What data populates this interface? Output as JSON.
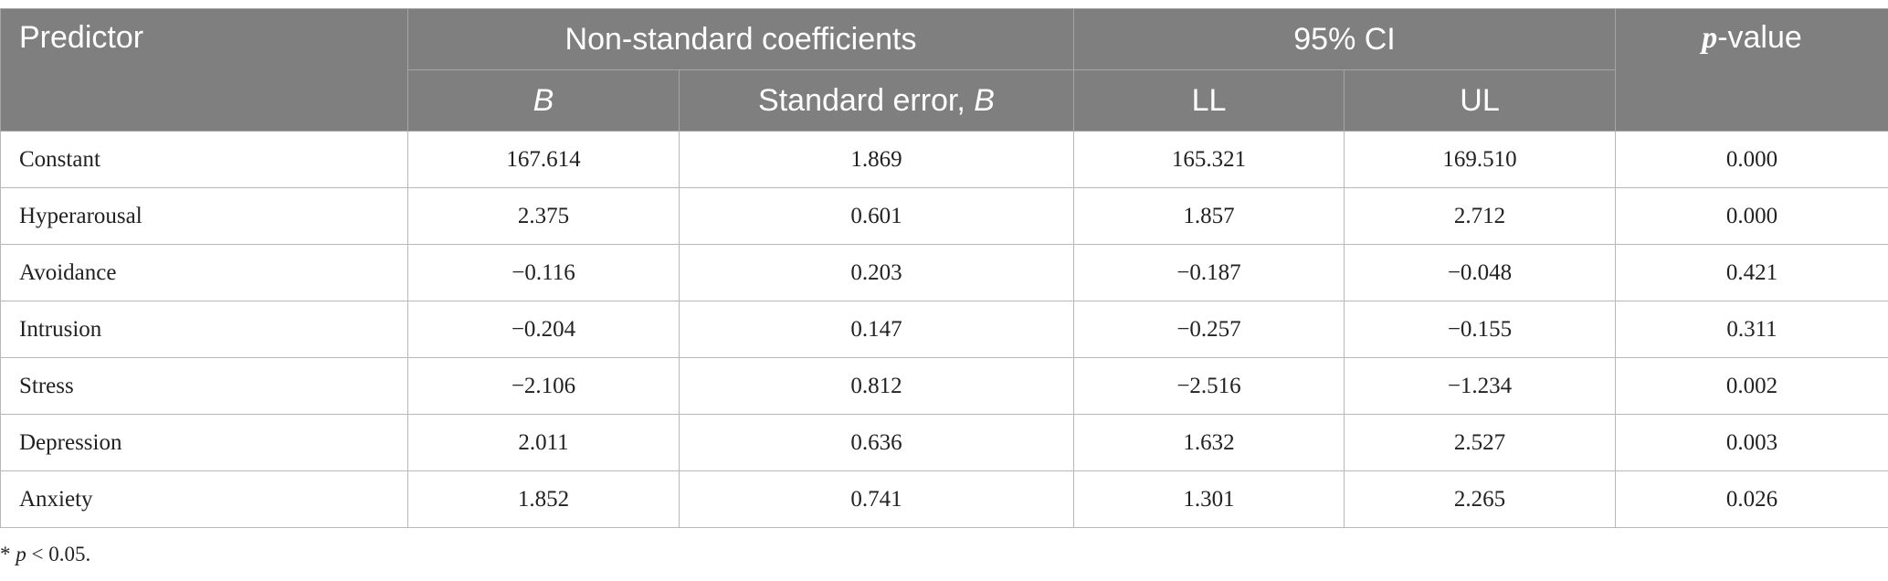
{
  "header": {
    "predictor": "Predictor",
    "group_coefficients": "Non-standard coefficients",
    "group_ci": "95% CI",
    "p_value": {
      "italic": "p",
      "rest": "-value"
    },
    "b": "B",
    "se": {
      "text": "Standard error, ",
      "italic": "B"
    },
    "ll": "LL",
    "ul": "UL"
  },
  "table": {
    "rows": [
      [
        "Constant",
        "167.614",
        "1.869",
        "165.321",
        "169.510",
        "0.000"
      ],
      [
        "Hyperarousal",
        "2.375",
        "0.601",
        "1.857",
        "2.712",
        "0.000"
      ],
      [
        "Avoidance",
        "−0.116",
        "0.203",
        "−0.187",
        "−0.048",
        "0.421"
      ],
      [
        "Intrusion",
        "−0.204",
        "0.147",
        "−0.257",
        "−0.155",
        "0.311"
      ],
      [
        "Stress",
        "−2.106",
        "0.812",
        "−2.516",
        "−1.234",
        "0.002"
      ],
      [
        "Depression",
        "2.011",
        "0.636",
        "1.632",
        "2.527",
        "0.003"
      ],
      [
        "Anxiety",
        "1.852",
        "0.741",
        "1.301",
        "2.265",
        "0.026"
      ]
    ]
  },
  "footnote": {
    "mark": "*",
    "italic": "p",
    "rest": "< 0.05."
  }
}
